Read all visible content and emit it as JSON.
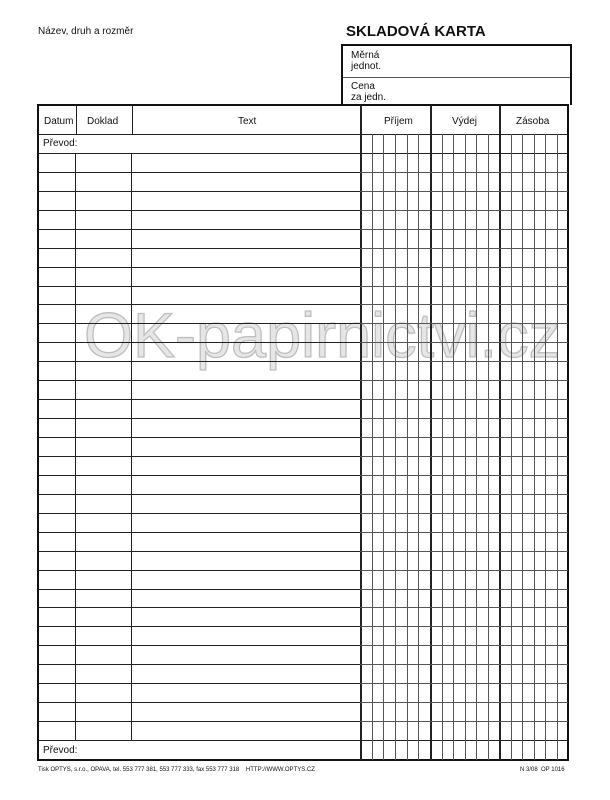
{
  "header": {
    "name_label": "Název, druh a rozměr",
    "title": "SKLADOVÁ KARTA",
    "unit_label": [
      "Měrná",
      "jednot."
    ],
    "price_label": [
      "Cena",
      "za jedn."
    ]
  },
  "table": {
    "columns": [
      "Datum",
      "Doklad",
      "Text",
      "Příjem",
      "Výdej",
      "Zásoba"
    ],
    "subcolumns_per_amount": 6,
    "transfer_label_top": "Převod:",
    "transfer_label_bottom": "Převod:",
    "blank_rows": 31
  },
  "footer": {
    "printer": "Tisk OPTYS, s.r.o., OPAVA, tel. 553 777 381, 553 777 333, fax 553 777 318    HTTP://WWW.OPTYS.CZ",
    "code": "N 3/08  OP 1016"
  },
  "watermark": "OK-papirnictvi.cz"
}
